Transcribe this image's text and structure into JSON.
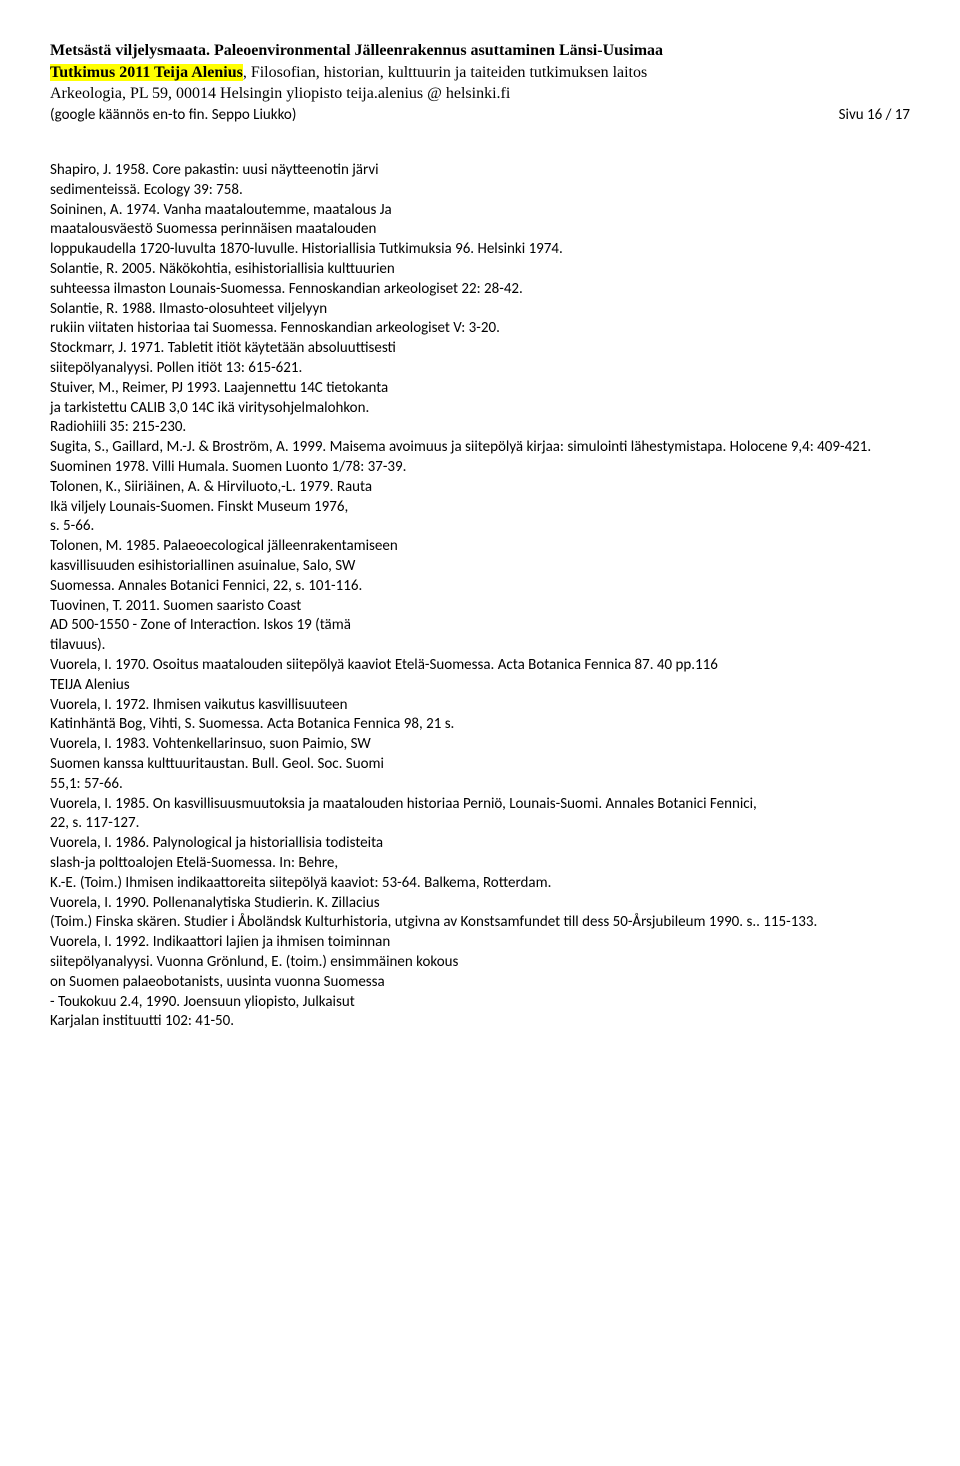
{
  "header": {
    "title_bold": "Metsästä viljelysmaata. Paleoenvironmental Jälleenrakennus asuttaminen Länsi-Uusimaa",
    "highlight": "Tutkimus 2011   Teija Alenius",
    "after_highlight": ",  Filosofian, historian, kulttuurin ja taiteiden tutkimuksen laitos",
    "line3": "Arkeologia, PL 59, 00014 Helsingin yliopisto teija.alenius @ helsinki.fi",
    "note_left": "(google käännös en-to fin.  Seppo Liukko)",
    "note_right": "Sivu 16 / 17"
  },
  "body": [
    "Shapiro, J. 1958. Core pakastin: uusi näytteenotin järvi",
    "sedimenteissä. Ecology 39: 758.",
    "Soininen, A. 1974. Vanha maataloutemme, maatalous Ja",
    "maatalousväestö Suomessa perinnäisen maatalouden",
    "loppukaudella 1720-luvulta 1870-luvulle. Historiallisia Tutkimuksia 96. Helsinki 1974.",
    "Solantie, R. 2005. Näkökohtia, esihistoriallisia kulttuurien",
    "suhteessa ilmaston Lounais-Suomessa. Fennoskandian arkeologiset 22: 28-42.",
    "Solantie, R. 1988. Ilmasto-olosuhteet viljelyyn",
    "rukiin viitaten historiaa tai Suomessa. Fennoskandian arkeologiset V: 3-20.",
    "Stockmarr, J. 1971. Tabletit itiöt käytetään absoluuttisesti",
    "siitepölyanalyysi. Pollen itiöt 13: 615-621.",
    "Stuiver, M., Reimer, PJ 1993. Laajennettu 14C tietokanta",
    "ja tarkistettu CALIB 3,0 14C ikä viritysohjelmalohkon.",
    "Radiohiili 35: 215-230.",
    "Sugita, S., Gaillard, M.-J. & Broström, A. 1999. Maisema avoimuus ja siitepölyä kirjaa: simulointi lähestymistapa. Holocene 9,4: 409-421.",
    "Suominen 1978. Villi Humala. Suomen Luonto 1/78: 37-39.",
    "Tolonen, K., Siiriäinen, A. & Hirviluoto,-L. 1979. Rauta",
    "Ikä viljely Lounais-Suomen. Finskt Museum 1976,",
    "s. 5-66.",
    "Tolonen, M. 1985. Palaeoecological jälleenrakentamiseen",
    "kasvillisuuden esihistoriallinen asuinalue, Salo, SW",
    "Suomessa. Annales Botanici Fennici, 22, s. 101-116.",
    "Tuovinen, T. 2011. Suomen saaristo Coast",
    "AD 500-1550 - Zone of Interaction. Iskos 19 (tämä",
    "tilavuus).",
    "Vuorela, I. 1970. Osoitus maatalouden siitepölyä kaaviot Etelä-Suomessa. Acta Botanica Fennica 87. 40 pp.116",
    "TEIJA Alenius",
    "Vuorela, I. 1972. Ihmisen vaikutus kasvillisuuteen",
    "Katinhäntä Bog, Vihti, S. Suomessa. Acta Botanica Fennica 98, 21 s.",
    "Vuorela, I. 1983. Vohtenkellarinsuo, suon Paimio, SW",
    "Suomen kanssa kulttuuritaustan. Bull. Geol. Soc. Suomi",
    "55,1: 57-66.",
    "Vuorela, I. 1985. On kasvillisuusmuutoksia ja maatalouden historiaa Perniö, Lounais-Suomi. Annales Botanici Fennici,",
    "22, s. 117-127.",
    "Vuorela, I. 1986. Palynological ja historiallisia todisteita",
    "slash-ja polttoalojen Etelä-Suomessa. In: Behre,",
    "K.-E. (Toim.) Ihmisen indikaattoreita siitepölyä kaaviot: 53-64. Balkema, Rotterdam.",
    "Vuorela, I. 1990. Pollenanalytiska Studierin. K. Zillacius",
    "(Toim.) Finska skären. Studier i Åboländsk Kulturhistoria, utgivna av Konstsamfundet till dess 50-Årsjubileum 1990. s.. 115-133.",
    "Vuorela, I. 1992. Indikaattori lajien ja ihmisen toiminnan",
    "siitepölyanalyysi. Vuonna Grönlund, E. (toim.) ensimmäinen kokous",
    "on Suomen palaeobotanists, uusinta vuonna Suomessa",
    "- Toukokuu 2.4, 1990. Joensuun yliopisto, Julkaisut",
    "Karjalan instituutti 102: 41-50."
  ]
}
